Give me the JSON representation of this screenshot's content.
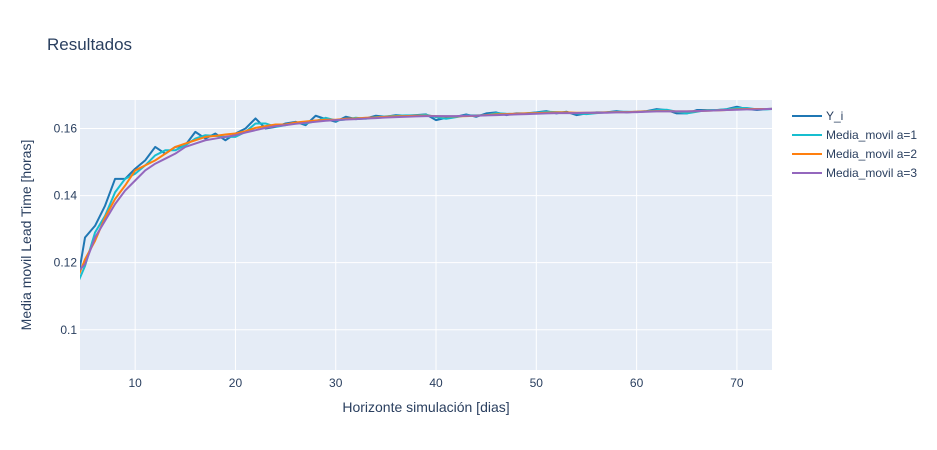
{
  "chart_data": {
    "type": "line",
    "title": "Resultados",
    "xlabel": "Horizonte simulación [dias]",
    "ylabel": "Media movil Lead Time [horas]",
    "xlim": [
      4.5,
      73.5
    ],
    "ylim": [
      0.088,
      0.1685
    ],
    "xticks": [
      10,
      20,
      30,
      40,
      50,
      60,
      70
    ],
    "yticks": [
      0.1,
      0.12,
      0.14,
      0.16
    ],
    "ytick_labels": [
      "0.1",
      "0.12",
      "0.14",
      "0.16"
    ],
    "grid": true,
    "legend_position": "top-right",
    "x": [
      4,
      5,
      6,
      7,
      8,
      9,
      10,
      11,
      12,
      13,
      14,
      15,
      16,
      17,
      18,
      19,
      20,
      21,
      22,
      23,
      24,
      25,
      26,
      27,
      28,
      29,
      30,
      31,
      32,
      33,
      34,
      35,
      36,
      37,
      38,
      39,
      40,
      41,
      42,
      43,
      44,
      45,
      46,
      47,
      48,
      49,
      50,
      51,
      52,
      53,
      54,
      55,
      56,
      57,
      58,
      59,
      60,
      61,
      62,
      63,
      64,
      65,
      66,
      67,
      68,
      69,
      70,
      71,
      72,
      73,
      74
    ],
    "series": [
      {
        "name": "Y_i",
        "color": "#1f77b4",
        "values": [
          0.11,
          0.1275,
          0.131,
          0.137,
          0.145,
          0.145,
          0.148,
          0.1505,
          0.1545,
          0.1525,
          0.1545,
          0.155,
          0.159,
          0.157,
          0.1585,
          0.1565,
          0.1585,
          0.16,
          0.163,
          0.16,
          0.1605,
          0.1615,
          0.162,
          0.161,
          0.1638,
          0.1628,
          0.162,
          0.1635,
          0.1628,
          0.163,
          0.1638,
          0.1635,
          0.164,
          0.1638,
          0.164,
          0.1642,
          0.1625,
          0.1632,
          0.1635,
          0.1642,
          0.1635,
          0.1645,
          0.1648,
          0.164,
          0.1645,
          0.1645,
          0.1648,
          0.1652,
          0.1645,
          0.165,
          0.164,
          0.1645,
          0.1648,
          0.1648,
          0.1652,
          0.1648,
          0.165,
          0.1652,
          0.1658,
          0.1655,
          0.1645,
          0.1645,
          0.1655,
          0.1655,
          0.1655,
          0.1658,
          0.1665,
          0.1658,
          0.1655,
          0.1658,
          0.166
        ]
      },
      {
        "name": "Media_movil a=1",
        "color": "#17becf",
        "values": [
          0.112,
          0.119,
          0.129,
          0.134,
          0.141,
          0.145,
          0.1465,
          0.149,
          0.152,
          0.1535,
          0.1535,
          0.155,
          0.157,
          0.158,
          0.1578,
          0.1575,
          0.1575,
          0.159,
          0.1615,
          0.1615,
          0.1605,
          0.161,
          0.1618,
          0.1615,
          0.1622,
          0.1632,
          0.1624,
          0.1627,
          0.1632,
          0.1629,
          0.1634,
          0.1636,
          0.1638,
          0.1639,
          0.1639,
          0.1641,
          0.1634,
          0.1629,
          0.1634,
          0.1639,
          0.1639,
          0.164,
          0.1646,
          0.1644,
          0.1643,
          0.1645,
          0.1647,
          0.165,
          0.1649,
          0.1648,
          0.1645,
          0.1643,
          0.1646,
          0.1648,
          0.165,
          0.165,
          0.1649,
          0.1651,
          0.1655,
          0.1656,
          0.165,
          0.1645,
          0.165,
          0.1655,
          0.1655,
          0.1657,
          0.1661,
          0.1661,
          0.1657,
          0.1657,
          0.1659
        ]
      },
      {
        "name": "Media_movil a=2",
        "color": "#ff7f0e",
        "values": [
          0.1135,
          0.121,
          0.1265,
          0.1335,
          0.139,
          0.143,
          0.1475,
          0.149,
          0.1505,
          0.1525,
          0.1545,
          0.1555,
          0.1565,
          0.1575,
          0.1578,
          0.1582,
          0.1585,
          0.1592,
          0.1602,
          0.1607,
          0.1612,
          0.1612,
          0.1618,
          0.1621,
          0.1624,
          0.1626,
          0.1626,
          0.1629,
          0.163,
          0.1632,
          0.1633,
          0.1635,
          0.1636,
          0.1637,
          0.1638,
          0.1638,
          0.1637,
          0.1636,
          0.1636,
          0.1637,
          0.1638,
          0.164,
          0.1642,
          0.1643,
          0.1644,
          0.1645,
          0.1646,
          0.1647,
          0.1648,
          0.1648,
          0.1647,
          0.1647,
          0.1647,
          0.1648,
          0.1649,
          0.1649,
          0.165,
          0.1651,
          0.1652,
          0.1652,
          0.1651,
          0.1651,
          0.1652,
          0.1653,
          0.1654,
          0.1655,
          0.1657,
          0.1658,
          0.1658,
          0.1658,
          0.1659
        ]
      },
      {
        "name": "Media_movil a=3",
        "color": "#9467bd",
        "values": [
          0.1165,
          0.1195,
          0.1275,
          0.1325,
          0.1375,
          0.1415,
          0.1445,
          0.1475,
          0.1495,
          0.151,
          0.1525,
          0.1545,
          0.1555,
          0.1565,
          0.157,
          0.1575,
          0.158,
          0.1588,
          0.1595,
          0.1602,
          0.1607,
          0.161,
          0.1614,
          0.1617,
          0.162,
          0.1623,
          0.1625,
          0.1627,
          0.1628,
          0.163,
          0.1631,
          0.1633,
          0.1634,
          0.1635,
          0.1636,
          0.1637,
          0.1637,
          0.1637,
          0.1637,
          0.1638,
          0.1638,
          0.1639,
          0.164,
          0.1641,
          0.1642,
          0.1643,
          0.1644,
          0.1645,
          0.1646,
          0.1646,
          0.1646,
          0.1647,
          0.1647,
          0.1647,
          0.1648,
          0.1648,
          0.1649,
          0.165,
          0.1651,
          0.1651,
          0.1651,
          0.1651,
          0.1652,
          0.1653,
          0.1654,
          0.1655,
          0.1656,
          0.1657,
          0.1657,
          0.1658,
          0.1658
        ]
      }
    ]
  },
  "colors": {
    "plot_background": "#e5ecf6",
    "grid": "#ffffff",
    "text": "#2a3f5f"
  }
}
